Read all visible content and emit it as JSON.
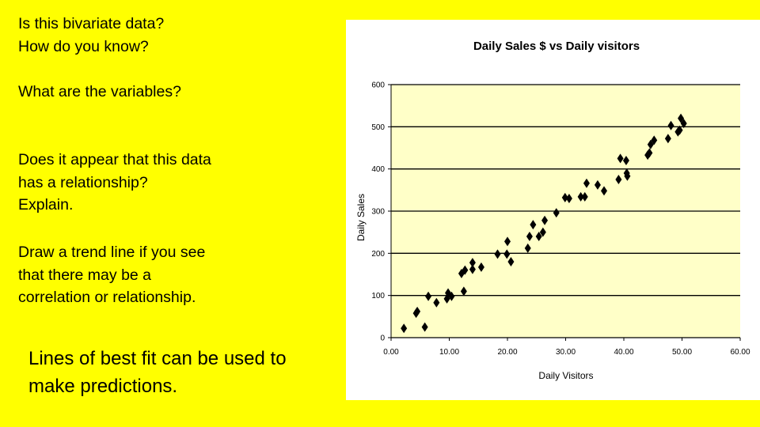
{
  "questions": {
    "q1": "Is this bivariate data?\nHow do you know?",
    "q2": "What are the variables?",
    "q3": "Does it appear that this data\nhas a relationship?\nExplain.",
    "q4": "Draw a trend line if you see\nthat there may be a\ncorrelation or relationship.",
    "q5": "Lines of best fit can be used to\nmake predictions."
  },
  "colors": {
    "background": "#ffff00",
    "plot_area": "#ffffc8",
    "markers": "#000000"
  },
  "chart_data": {
    "type": "scatter",
    "title": "Daily  Sales $ vs Daily visitors",
    "xlabel": "Daily Visitors",
    "ylabel": "Daily Sales",
    "xlim": [
      0,
      60
    ],
    "ylim": [
      0,
      600
    ],
    "xticks": [
      "0.00",
      "10.00",
      "20.00",
      "30.00",
      "40.00",
      "50.00",
      "60.00"
    ],
    "yticks": [
      "0",
      "100",
      "200",
      "300",
      "400",
      "500",
      "600"
    ],
    "grid": "horizontal",
    "legend": "none",
    "marker": "diamond",
    "points": [
      [
        2.2,
        22
      ],
      [
        4.3,
        58
      ],
      [
        4.5,
        62
      ],
      [
        5.8,
        25
      ],
      [
        6.4,
        98
      ],
      [
        7.8,
        83
      ],
      [
        9.6,
        92
      ],
      [
        9.8,
        106
      ],
      [
        10.4,
        98
      ],
      [
        12.1,
        152
      ],
      [
        12.5,
        110
      ],
      [
        12.7,
        160
      ],
      [
        14.0,
        162
      ],
      [
        14.0,
        178
      ],
      [
        15.5,
        167
      ],
      [
        18.3,
        198
      ],
      [
        19.9,
        198
      ],
      [
        20.0,
        228
      ],
      [
        20.6,
        180
      ],
      [
        23.5,
        212
      ],
      [
        23.8,
        240
      ],
      [
        24.4,
        268
      ],
      [
        25.4,
        240
      ],
      [
        26.1,
        250
      ],
      [
        26.4,
        278
      ],
      [
        28.4,
        296
      ],
      [
        29.9,
        332
      ],
      [
        30.6,
        330
      ],
      [
        32.6,
        334
      ],
      [
        33.3,
        334
      ],
      [
        33.6,
        366
      ],
      [
        35.5,
        362
      ],
      [
        36.6,
        348
      ],
      [
        39.1,
        375
      ],
      [
        39.4,
        425
      ],
      [
        40.4,
        420
      ],
      [
        40.5,
        390
      ],
      [
        40.6,
        383
      ],
      [
        44.1,
        433
      ],
      [
        44.4,
        438
      ],
      [
        44.6,
        458
      ],
      [
        45.2,
        468
      ],
      [
        47.6,
        472
      ],
      [
        48.1,
        503
      ],
      [
        49.3,
        488
      ],
      [
        49.6,
        492
      ],
      [
        49.8,
        520
      ],
      [
        50.3,
        508
      ]
    ]
  }
}
